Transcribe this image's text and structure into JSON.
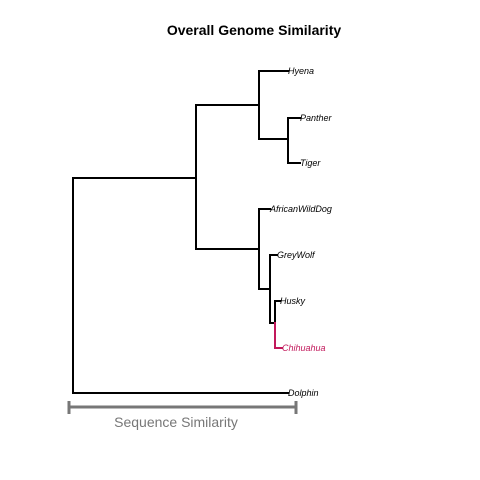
{
  "title": "Overall Genome Similarity",
  "tree": {
    "leaves": [
      {
        "label": "Hyena",
        "color": "#000000"
      },
      {
        "label": "Panther",
        "color": "#000000"
      },
      {
        "label": "Tiger",
        "color": "#000000"
      },
      {
        "label": "AfricanWildDog",
        "color": "#000000"
      },
      {
        "label": "GreyWolf",
        "color": "#000000"
      },
      {
        "label": "Husky",
        "color": "#000000"
      },
      {
        "label": "Chihuahua",
        "color": "#c2185b"
      },
      {
        "label": "Dolphin",
        "color": "#000000"
      }
    ],
    "highlight_color": "#c2185b"
  },
  "scale_bar": {
    "label": "Sequence Similarity",
    "color": "#777777"
  }
}
